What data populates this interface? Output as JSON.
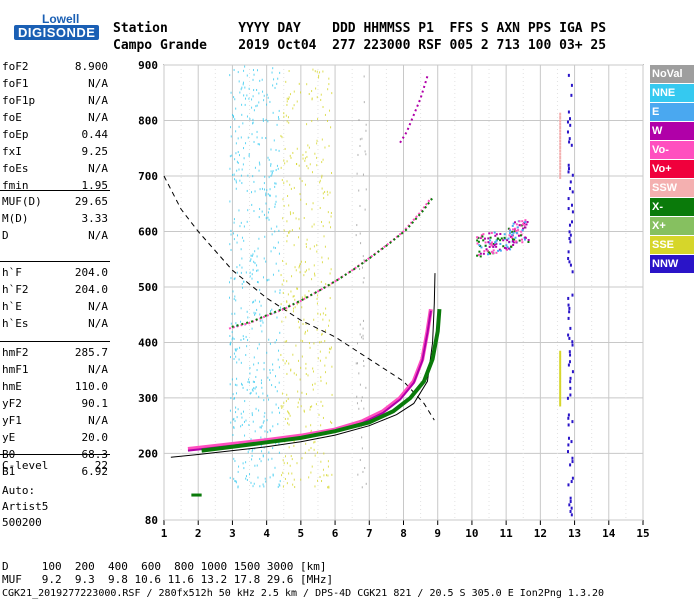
{
  "logo": {
    "line1": "Lowell",
    "line2": "DIGISONDE"
  },
  "header": {
    "row1": "Station         YYYY DAY    DDD HHMMSS P1  FFS S AXN PPS IGA PS",
    "row2": "Campo Grande    2019 Oct04  277 223000 RSF 005 2 713 100 03+ 25"
  },
  "params": {
    "group1": [
      {
        "k": "foF2",
        "v": "8.900"
      },
      {
        "k": "foF1",
        "v": "N/A"
      },
      {
        "k": "foF1p",
        "v": "N/A"
      },
      {
        "k": "foE",
        "v": "N/A"
      },
      {
        "k": "foEp",
        "v": "0.44"
      },
      {
        "k": "fxI",
        "v": "9.25"
      },
      {
        "k": "foEs",
        "v": "N/A"
      },
      {
        "k": "fmin",
        "v": "1.95"
      }
    ],
    "group2": [
      {
        "k": "MUF(D)",
        "v": "29.65"
      },
      {
        "k": "M(D)",
        "v": "3.33"
      },
      {
        "k": "D",
        "v": "N/A"
      }
    ],
    "group3": [
      {
        "k": "h`F",
        "v": "204.0"
      },
      {
        "k": "h`F2",
        "v": "204.0"
      },
      {
        "k": "h`E",
        "v": "N/A"
      },
      {
        "k": "h`Es",
        "v": "N/A"
      }
    ],
    "group4": [
      {
        "k": "hmF2",
        "v": "285.7"
      },
      {
        "k": "hmF1",
        "v": "N/A"
      },
      {
        "k": "hmE",
        "v": "110.0"
      },
      {
        "k": "yF2",
        "v": "90.1"
      },
      {
        "k": "yF1",
        "v": "N/A"
      },
      {
        "k": "yE",
        "v": "20.0"
      },
      {
        "k": "B0",
        "v": "68.3"
      },
      {
        "k": "B1",
        "v": "6.92"
      }
    ],
    "group5": [
      {
        "k": "C-level",
        "v": "22"
      }
    ]
  },
  "autoscale": {
    "line1": "Auto:",
    "line2": "Artist5",
    "line3": "500200"
  },
  "legend": [
    {
      "label": "NoVal",
      "color": "#9e9e9e"
    },
    {
      "label": "NNE",
      "color": "#35c9f0"
    },
    {
      "label": "E",
      "color": "#4aa8f0"
    },
    {
      "label": "W",
      "color": "#b000a8"
    },
    {
      "label": "Vo-",
      "color": "#ff4fbf"
    },
    {
      "label": "Vo+",
      "color": "#f0003c"
    },
    {
      "label": "SSW",
      "color": "#f4b0b0"
    },
    {
      "label": "X-",
      "color": "#0a7a0a"
    },
    {
      "label": "X+",
      "color": "#86c060"
    },
    {
      "label": "SSE",
      "color": "#d6d62a"
    },
    {
      "label": "NNW",
      "color": "#2a14c8"
    }
  ],
  "footer": {
    "d_row": "D     100  200  400  600  800 1000 1500 3000 [km]",
    "muf_row": "MUF   9.2  9.3  9.8 10.6 11.6 13.2 17.8 29.6 [MHz]",
    "info": "CGK21_2019277223000.RSF / 280fx512h 50 kHz 2.5 km / DPS-4D CGK21 821 / 20.5 S 305.0 E Ion2Png 1.3.20"
  },
  "chart_data": {
    "type": "scatter",
    "xlim": [
      1,
      15
    ],
    "ylim": [
      80,
      900
    ],
    "xticks": [
      "1",
      "2",
      "3",
      "4",
      "5",
      "6",
      "7",
      "8",
      "9",
      "10",
      "11",
      "12",
      "13",
      "14",
      "15"
    ],
    "yticks": [
      "80",
      "200",
      "300",
      "400",
      "500",
      "600",
      "700",
      "800",
      "900"
    ],
    "grid": true,
    "profile_line": {
      "x": [
        1.2,
        2,
        3,
        4,
        5,
        6,
        7,
        7.8,
        8.3,
        8.7,
        8.85,
        8.9,
        8.92
      ],
      "y": [
        193,
        198,
        205,
        212,
        221,
        233,
        250,
        270,
        290,
        330,
        400,
        470,
        525
      ]
    },
    "muf_dashed": {
      "x": [
        1,
        1.5,
        2,
        3,
        4,
        5,
        6,
        7,
        8,
        8.6,
        8.9
      ],
      "y": [
        700,
        640,
        600,
        530,
        480,
        440,
        410,
        370,
        330,
        290,
        260
      ]
    },
    "o_trace": {
      "x": [
        1.7,
        2,
        3,
        4,
        5,
        6,
        6.8,
        7.4,
        7.9,
        8.3,
        8.55,
        8.7,
        8.8
      ],
      "y": [
        208,
        210,
        217,
        224,
        232,
        243,
        258,
        276,
        300,
        330,
        370,
        420,
        460
      ]
    },
    "x_trace": {
      "x": [
        2.1,
        3,
        4,
        5,
        6,
        7,
        7.7,
        8.2,
        8.6,
        8.85,
        9.0,
        9.05
      ],
      "y": [
        205,
        212,
        220,
        228,
        240,
        256,
        276,
        300,
        330,
        370,
        420,
        460
      ]
    },
    "upper_trace": {
      "x": [
        2.9,
        3.5,
        4,
        4.5,
        5,
        5.5,
        6,
        6.5,
        7,
        7.5,
        8,
        8.5,
        8.8
      ],
      "y": [
        425,
        435,
        448,
        460,
        475,
        492,
        510,
        530,
        552,
        575,
        600,
        635,
        660
      ]
    },
    "top_trace": {
      "x": [
        7.9,
        8.1,
        8.3,
        8.5,
        8.7
      ],
      "y": [
        760,
        780,
        810,
        840,
        880
      ]
    },
    "spread": {
      "x": [
        10.1,
        10.4,
        10.7,
        11.0,
        11.2,
        11.4,
        11.6
      ],
      "y": [
        575,
        578,
        582,
        588,
        600,
        605,
        598
      ]
    },
    "low_cluster": {
      "x": [
        1.8,
        2.0,
        2.1
      ],
      "y": [
        125,
        125,
        125
      ]
    },
    "nnw_x": 12.85,
    "ssw_x": 12.55
  }
}
